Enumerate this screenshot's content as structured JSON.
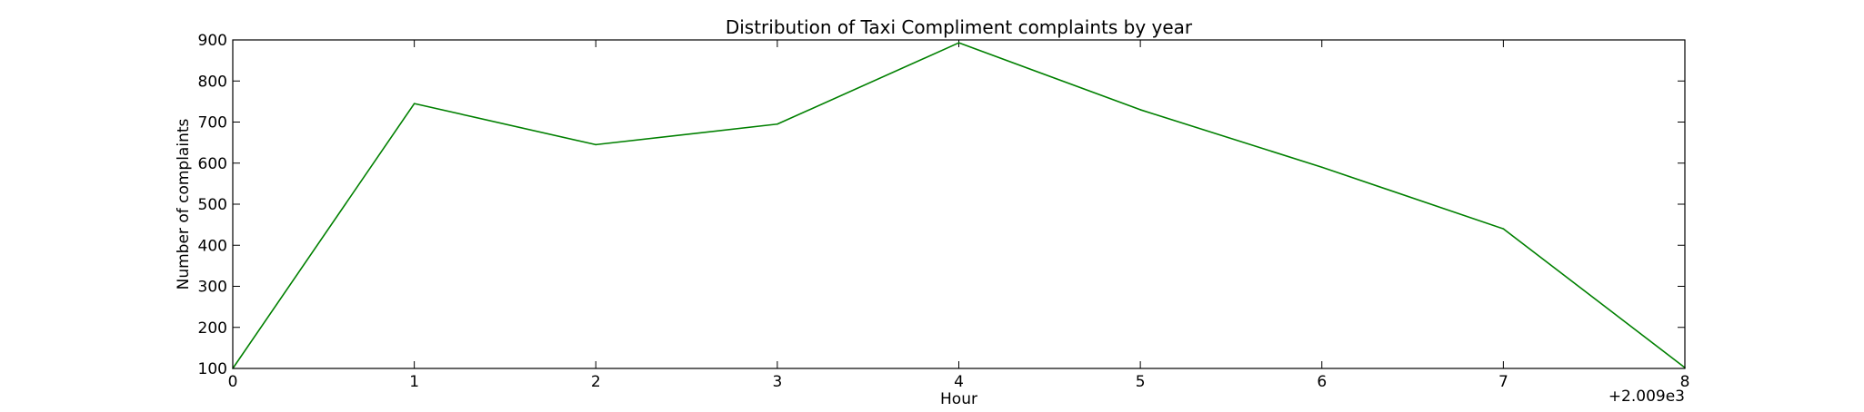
{
  "chart_data": {
    "type": "line",
    "title": "Distribution of  Taxi Compliment complaints by year",
    "xlabel": "Hour",
    "ylabel": "Number of complaints",
    "x_offset_label": "+2.009e3",
    "xlim": [
      0,
      8
    ],
    "ylim": [
      100,
      900
    ],
    "x_ticks": [
      0,
      1,
      2,
      3,
      4,
      5,
      6,
      7,
      8
    ],
    "y_ticks": [
      100,
      200,
      300,
      400,
      500,
      600,
      700,
      800,
      900
    ],
    "grid": false,
    "legend": "none",
    "series": [
      {
        "color": "#008000",
        "x": [
          0,
          1,
          2,
          3,
          4,
          5,
          6,
          7,
          8
        ],
        "y": [
          100,
          745,
          645,
          695,
          893,
          730,
          590,
          440,
          102
        ]
      }
    ]
  }
}
